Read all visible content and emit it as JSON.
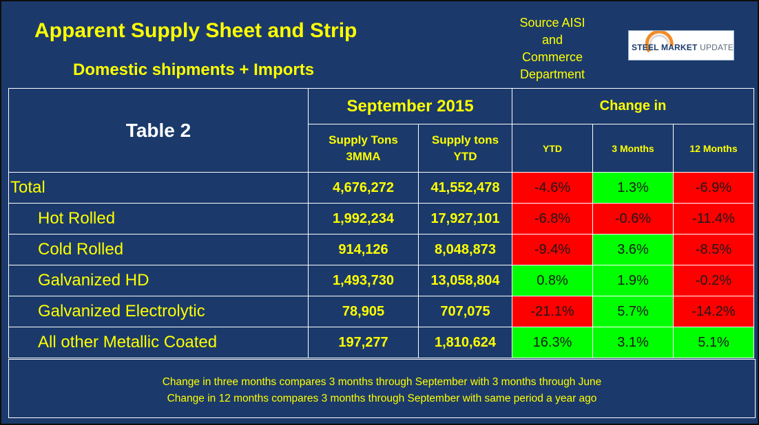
{
  "header": {
    "title": "Apparent Supply Sheet and Strip",
    "subtitle": "Domestic shipments + Imports",
    "source_lines": [
      "Source AISI",
      "and",
      "Commerce",
      "Department"
    ],
    "logo_text_bold": "STEEL MARKET",
    "logo_text_light": "UPDATE"
  },
  "table": {
    "name": "Table 2",
    "period": "September 2015",
    "change_header": "Change in",
    "col_headers": {
      "supply_3mma_line1": "Supply Tons",
      "supply_3mma_line2": "3MMA",
      "supply_ytd_line1": "Supply tons",
      "supply_ytd_line2": "YTD",
      "ytd": "YTD",
      "three_months": "3 Months",
      "twelve_months": "12 Months"
    },
    "rows": [
      {
        "label": "Total",
        "mma": "4,676,272",
        "ytd_tons": "41,552,478",
        "ytd": "-4.6%",
        "m3": "1.3%",
        "m12": "-6.9%"
      },
      {
        "label": "Hot Rolled",
        "mma": "1,992,234",
        "ytd_tons": "17,927,101",
        "ytd": "-6.8%",
        "m3": "-0.6%",
        "m12": "-11.4%"
      },
      {
        "label": "Cold Rolled",
        "mma": "914,126",
        "ytd_tons": "8,048,873",
        "ytd": "-9.4%",
        "m3": "3.6%",
        "m12": "-8.5%"
      },
      {
        "label": "Galvanized HD",
        "mma": "1,493,730",
        "ytd_tons": "13,058,804",
        "ytd": "0.8%",
        "m3": "1.9%",
        "m12": "-0.2%"
      },
      {
        "label": "Galvanized Electrolytic",
        "mma": "78,905",
        "ytd_tons": "707,075",
        "ytd": "-21.1%",
        "m3": "5.7%",
        "m12": "-14.2%"
      },
      {
        "label": "All other Metallic Coated",
        "mma": "197,277",
        "ytd_tons": "1,810,624",
        "ytd": "16.3%",
        "m3": "3.1%",
        "m12": "5.1%"
      }
    ]
  },
  "notes": [
    "Change in three months compares 3 months through September with 3 months through June",
    "Change in 12 months compares 3 months through September with same period a year ago"
  ],
  "colors": {
    "background": "#1b3a6b",
    "text": "#ffff00",
    "negative": "#ff0000",
    "positive": "#00ff00"
  }
}
